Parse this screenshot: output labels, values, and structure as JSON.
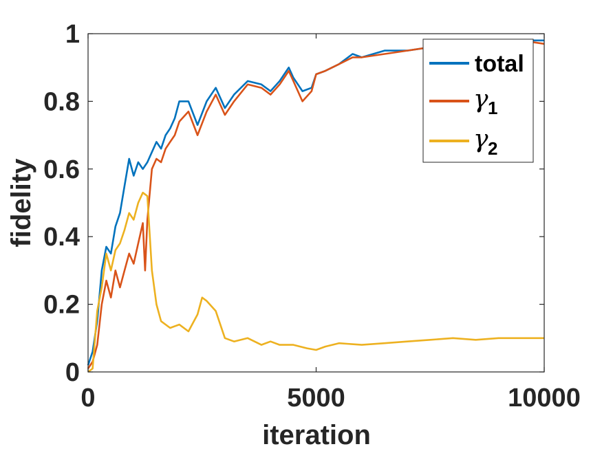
{
  "chart_data": {
    "type": "line",
    "xlabel": "iteration",
    "ylabel": "fidelity",
    "xlim": [
      0,
      10000
    ],
    "ylim": [
      0,
      1
    ],
    "x_ticks": [
      0,
      5000,
      10000
    ],
    "x_tick_labels": [
      "0",
      "5000",
      "10000"
    ],
    "y_ticks": [
      0,
      0.2,
      0.4,
      0.6,
      0.8,
      1
    ],
    "y_tick_labels": [
      "0",
      "0.2",
      "0.4",
      "0.6",
      "0.8",
      "1"
    ],
    "grid": false,
    "legend_position": "top-right",
    "legend": [
      {
        "symbol": "",
        "label": "total",
        "subscript": ""
      },
      {
        "symbol": "γ",
        "label": "",
        "subscript": "1"
      },
      {
        "symbol": "γ",
        "label": "",
        "subscript": "2"
      }
    ],
    "series": [
      {
        "name": "total",
        "color": "#0072BD",
        "x": [
          0,
          100,
          200,
          300,
          400,
          500,
          600,
          700,
          800,
          900,
          1000,
          1100,
          1200,
          1300,
          1400,
          1500,
          1600,
          1700,
          1800,
          1900,
          2000,
          2200,
          2400,
          2600,
          2800,
          3000,
          3200,
          3500,
          3800,
          4000,
          4200,
          4400,
          4500,
          4700,
          4900,
          5000,
          5200,
          5500,
          5800,
          6000,
          6500,
          7000,
          7500,
          8000,
          8500,
          9000,
          9500,
          10000
        ],
        "y": [
          0.02,
          0.06,
          0.15,
          0.3,
          0.37,
          0.35,
          0.43,
          0.47,
          0.55,
          0.63,
          0.58,
          0.62,
          0.6,
          0.62,
          0.65,
          0.68,
          0.66,
          0.7,
          0.72,
          0.75,
          0.8,
          0.8,
          0.73,
          0.8,
          0.84,
          0.78,
          0.82,
          0.86,
          0.85,
          0.83,
          0.86,
          0.9,
          0.87,
          0.83,
          0.84,
          0.88,
          0.89,
          0.91,
          0.94,
          0.93,
          0.95,
          0.95,
          0.96,
          0.97,
          0.97,
          0.98,
          0.98,
          0.98
        ]
      },
      {
        "name": "γ1",
        "color": "#D95319",
        "x": [
          0,
          100,
          200,
          300,
          400,
          500,
          600,
          700,
          800,
          900,
          1000,
          1100,
          1200,
          1250,
          1300,
          1400,
          1500,
          1600,
          1700,
          1800,
          1900,
          2000,
          2200,
          2400,
          2600,
          2800,
          3000,
          3200,
          3500,
          3800,
          4000,
          4200,
          4400,
          4500,
          4700,
          4900,
          5000,
          5200,
          5500,
          5800,
          6000,
          6500,
          7000,
          7500,
          8000,
          8500,
          9000,
          9500,
          10000
        ],
        "y": [
          0.01,
          0.03,
          0.08,
          0.2,
          0.27,
          0.22,
          0.3,
          0.25,
          0.3,
          0.35,
          0.32,
          0.38,
          0.44,
          0.3,
          0.45,
          0.6,
          0.63,
          0.62,
          0.66,
          0.68,
          0.7,
          0.74,
          0.77,
          0.7,
          0.77,
          0.82,
          0.76,
          0.8,
          0.85,
          0.84,
          0.82,
          0.85,
          0.89,
          0.86,
          0.8,
          0.83,
          0.88,
          0.89,
          0.91,
          0.93,
          0.93,
          0.94,
          0.95,
          0.96,
          0.97,
          0.97,
          0.97,
          0.98,
          0.97
        ]
      },
      {
        "name": "γ2",
        "color": "#EDB120",
        "x": [
          0,
          100,
          200,
          300,
          400,
          500,
          600,
          700,
          800,
          900,
          1000,
          1100,
          1200,
          1300,
          1400,
          1500,
          1600,
          1800,
          2000,
          2200,
          2400,
          2500,
          2600,
          2800,
          3000,
          3200,
          3500,
          3800,
          4000,
          4200,
          4500,
          4800,
          5000,
          5200,
          5500,
          6000,
          6500,
          7000,
          7500,
          8000,
          8500,
          9000,
          9500,
          10000
        ],
        "y": [
          0.0,
          0.01,
          0.18,
          0.25,
          0.35,
          0.3,
          0.36,
          0.38,
          0.42,
          0.47,
          0.45,
          0.5,
          0.53,
          0.52,
          0.3,
          0.2,
          0.15,
          0.13,
          0.14,
          0.12,
          0.17,
          0.22,
          0.21,
          0.18,
          0.1,
          0.09,
          0.1,
          0.08,
          0.09,
          0.08,
          0.08,
          0.07,
          0.065,
          0.075,
          0.085,
          0.08,
          0.085,
          0.09,
          0.095,
          0.1,
          0.095,
          0.1,
          0.1,
          0.1
        ]
      }
    ]
  }
}
